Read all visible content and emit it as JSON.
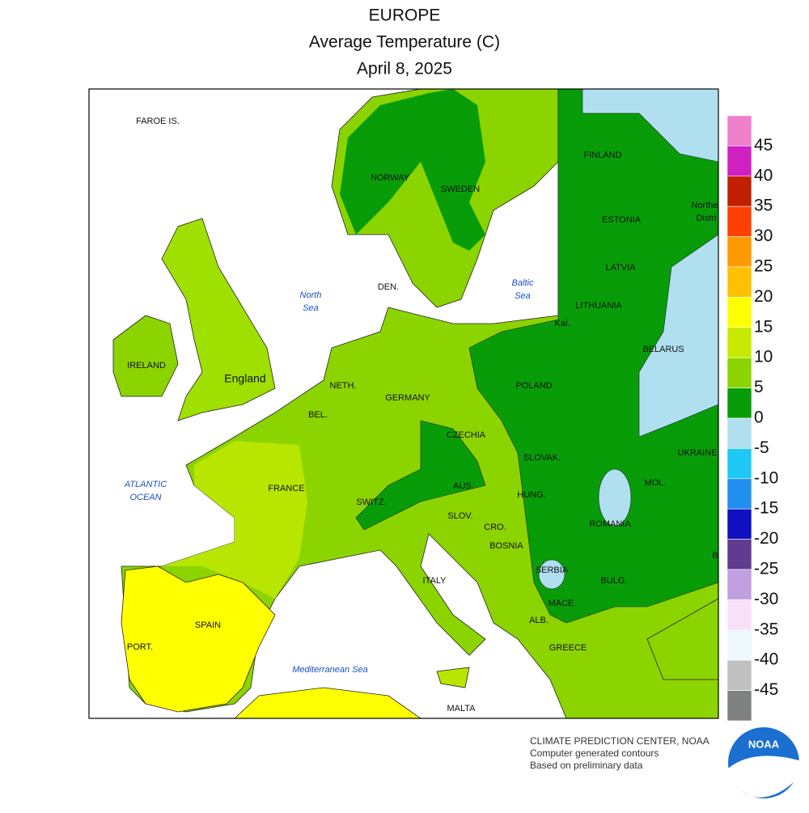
{
  "title": [
    "EUROPE",
    "Average Temperature (C)",
    "April 8, 2025"
  ],
  "map_labels": [
    "FAROE IS.",
    "NORWAY",
    "SWEDEN",
    "FINLAND",
    "ESTONIA",
    "LATVIA",
    "LITHUANIA",
    "Kal.",
    "BELARUS",
    "POLAND",
    "GERMANY",
    "NETH.",
    "BEL.",
    "CZECHIA",
    "SLOVAK.",
    "UKRAINE",
    "MOL.",
    "HUNG.",
    "AUS.",
    "SWITZ.",
    "SLOV.",
    "CRO.",
    "ROMANIA",
    "BOSNIA",
    "SERBIA",
    "BULG.",
    "MACE.",
    "ALB.",
    "ITALY",
    "GREECE",
    "FRANCE",
    "SPAIN",
    "PORT.",
    "IRELAND",
    "England",
    "DEN.",
    "MALTA",
    "Northe",
    "Distri",
    "B"
  ],
  "sea_labels": [
    "North",
    "Sea",
    "Baltic",
    "Sea",
    "ATLANTIC",
    "OCEAN",
    "Mediterranean Sea"
  ],
  "legend": {
    "colors": [
      "#ee80cc",
      "#d020c0",
      "#c02000",
      "#ff4000",
      "#ff9900",
      "#ffc000",
      "#ffff00",
      "#c8ea00",
      "#8cd400",
      "#089d08",
      "#b0e0f0",
      "#20c8f8",
      "#2090f0",
      "#1010c0",
      "#603c90",
      "#c0a0e0",
      "#f8e0f8",
      "#eef8ff",
      "#c0c0c0",
      "#7f8080"
    ],
    "ticks": [
      45,
      40,
      35,
      30,
      25,
      20,
      15,
      10,
      5,
      0,
      -5,
      -10,
      -15,
      -20,
      -25,
      -30,
      -35,
      -40,
      -45
    ]
  },
  "footer": [
    "CLIMATE PREDICTION CENTER, NOAA",
    "Computer generated contours",
    "Based on preliminary data"
  ],
  "logo": "NOAA"
}
